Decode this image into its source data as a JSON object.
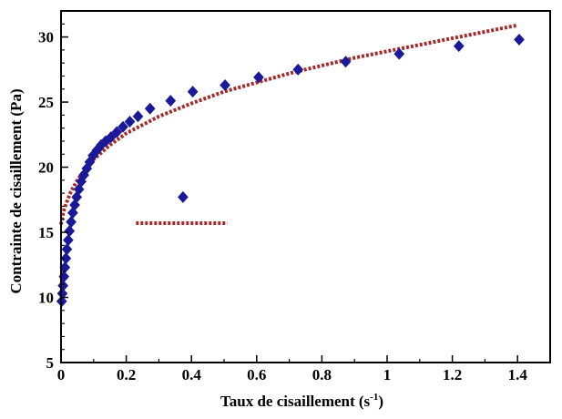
{
  "chart_data": {
    "type": "scatter",
    "xlabel_main": "Taux de cisaillement (s",
    "xlabel_sup": "-1",
    "xlabel_end": ")",
    "ylabel": "Contrainte de cisaillement (Pa)",
    "xlim": [
      0,
      1.5
    ],
    "ylim": [
      5,
      32
    ],
    "x_ticks": [
      0,
      0.2,
      0.4,
      0.6,
      0.8,
      1,
      1.2,
      1.4
    ],
    "x_tick_labels": [
      "0",
      "0.2",
      "0.4",
      "0.6",
      "0.8",
      "1",
      "1.2",
      "1.4"
    ],
    "y_ticks": [
      5,
      10,
      15,
      20,
      25,
      30
    ],
    "y_tick_labels": [
      "5",
      "10",
      "15",
      "20",
      "25",
      "30"
    ],
    "grid": false,
    "colors": {
      "points": "#1a1a99",
      "fit": "#a52a2a",
      "axes": "#000000"
    },
    "series": [
      {
        "kind": "points",
        "marker": "diamond",
        "x": [
          0.002,
          0.004,
          0.006,
          0.009,
          0.012,
          0.015,
          0.018,
          0.022,
          0.026,
          0.031,
          0.036,
          0.042,
          0.048,
          0.055,
          0.062,
          0.07,
          0.079,
          0.088,
          0.098,
          0.11,
          0.123,
          0.137,
          0.153,
          0.171,
          0.19,
          0.211,
          0.236,
          0.273,
          0.336,
          0.404,
          0.503,
          0.606,
          0.727,
          0.873,
          1.037,
          1.22,
          1.405,
          0.374
        ],
        "y": [
          9.7,
          10.3,
          10.9,
          11.6,
          12.3,
          13.0,
          13.7,
          14.4,
          15.1,
          15.8,
          16.5,
          17.1,
          17.7,
          18.3,
          18.9,
          19.4,
          19.9,
          20.4,
          20.9,
          21.3,
          21.7,
          22.0,
          22.3,
          22.7,
          23.1,
          23.5,
          23.9,
          24.5,
          25.1,
          25.8,
          26.3,
          26.9,
          27.5,
          28.1,
          28.7,
          29.3,
          29.8,
          17.7
        ]
      },
      {
        "kind": "fit_curve",
        "style": "dotted",
        "x": [
          0.0,
          0.005,
          0.01,
          0.02,
          0.03,
          0.05,
          0.07,
          0.1,
          0.15,
          0.2,
          0.3,
          0.4,
          0.5,
          0.6,
          0.7,
          0.8,
          0.9,
          1.0,
          1.1,
          1.2,
          1.3,
          1.4
        ],
        "y": [
          15.6,
          16.3,
          16.8,
          17.5,
          18.1,
          19.0,
          19.7,
          20.6,
          21.7,
          22.6,
          23.9,
          24.9,
          25.8,
          26.5,
          27.2,
          27.8,
          28.4,
          28.9,
          29.4,
          29.9,
          30.4,
          30.9
        ]
      },
      {
        "kind": "fit_segment",
        "style": "dotted",
        "x": [
          0.23,
          0.51
        ],
        "y": [
          15.7,
          15.7
        ]
      }
    ]
  }
}
